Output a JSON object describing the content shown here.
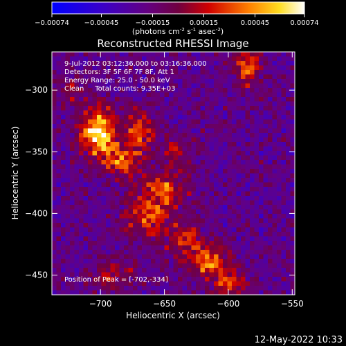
{
  "chart_data": {
    "type": "heatmap",
    "title": "Reconstructed RHESSI Image",
    "xlabel": "Heliocentric X (arcsec)",
    "ylabel": "Heliocentric Y (arcsec)",
    "xlim": [
      -738,
      -548
    ],
    "ylim": [
      -466,
      -269
    ],
    "xticks": [
      -700,
      -650,
      -600,
      -550
    ],
    "yticks": [
      -300,
      -350,
      -400,
      -450
    ],
    "colorbar": {
      "range": [
        -0.00074,
        0.00074
      ],
      "ticks": [
        -0.00074,
        -0.00045,
        -0.00015,
        0.00015,
        0.00045,
        0.00074
      ],
      "tick_labels": [
        "-0.00074",
        "-0.00045",
        "-0.00015",
        "0.00015",
        "0.00045",
        "0.00074"
      ],
      "unit_parts": [
        "(photons cm",
        "-2",
        " s",
        "-1",
        " asec",
        "-2",
        ")"
      ]
    },
    "annotations": [
      "9-Jul-2012 03:12:36.000 to 03:16:36.000",
      "Detectors: 3F 5F 6F 7F 8F, Att 1",
      "Energy Range: 25.0 - 50.0 keV",
      "Clean     Total counts: 9.35E+03"
    ],
    "peak_label": "Position of Peak = [-702,-334]",
    "peak": [
      -702,
      -334
    ],
    "sources": [
      {
        "x": -702,
        "y": -334,
        "amp": 1.0,
        "sx": 9,
        "sy": 13
      },
      {
        "x": -683,
        "y": -356,
        "amp": 0.55,
        "sx": 10,
        "sy": 10
      },
      {
        "x": -668,
        "y": -332,
        "amp": 0.5,
        "sx": 8,
        "sy": 12
      },
      {
        "x": -652,
        "y": -382,
        "amp": 0.55,
        "sx": 12,
        "sy": 11
      },
      {
        "x": -665,
        "y": -405,
        "amp": 0.5,
        "sx": 11,
        "sy": 10
      },
      {
        "x": -635,
        "y": -420,
        "amp": 0.45,
        "sx": 10,
        "sy": 9
      },
      {
        "x": -615,
        "y": -440,
        "amp": 0.6,
        "sx": 11,
        "sy": 9
      },
      {
        "x": -598,
        "y": -458,
        "amp": 0.5,
        "sx": 9,
        "sy": 6
      },
      {
        "x": -585,
        "y": -282,
        "amp": 0.55,
        "sx": 7,
        "sy": 11
      },
      {
        "x": -690,
        "y": -450,
        "amp": 0.3,
        "sx": 12,
        "sy": 9
      },
      {
        "x": -725,
        "y": -300,
        "amp": 0.25,
        "sx": 7,
        "sy": 9
      },
      {
        "x": -640,
        "y": -350,
        "amp": 0.3,
        "sx": 8,
        "sy": 10
      }
    ],
    "footer_date": "12-May-2022 10:33"
  }
}
